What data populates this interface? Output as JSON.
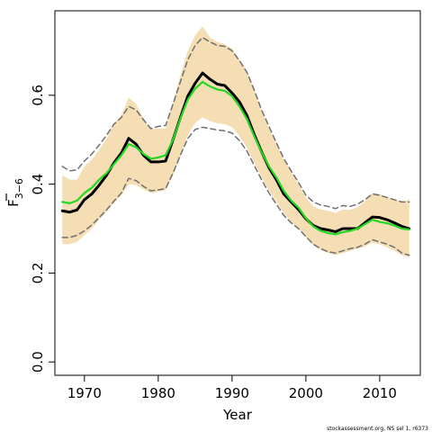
{
  "chart_data": {
    "type": "line",
    "xlabel": "Year",
    "ylabel": "F",
    "ylabel_subscript": "3−6",
    "xlim": [
      1966,
      2015.5
    ],
    "ylim": [
      -0.03,
      0.79
    ],
    "x_ticks": [
      1970,
      1980,
      1990,
      2000,
      2010
    ],
    "x_tick_labels": [
      "1970",
      "1980",
      "1990",
      "2000",
      "2010"
    ],
    "y_ticks": [
      0.0,
      0.2,
      0.4,
      0.6
    ],
    "y_tick_labels": [
      "0.0",
      "0.2",
      "0.4",
      "0.6"
    ],
    "grid": false,
    "legend": "none",
    "footer": "stockassessment.org, NS sel 1, r6373",
    "x": [
      1967,
      1968,
      1969,
      1970,
      1971,
      1972,
      1973,
      1974,
      1975,
      1976,
      1977,
      1978,
      1979,
      1980,
      1981,
      1982,
      1983,
      1984,
      1985,
      1986,
      1987,
      1988,
      1989,
      1990,
      1991,
      1992,
      1993,
      1994,
      1995,
      1996,
      1997,
      1998,
      1999,
      2000,
      2001,
      2002,
      2003,
      2004,
      2005,
      2006,
      2007,
      2008,
      2009,
      2010,
      2011,
      2012,
      2013,
      2014
    ],
    "series": [
      {
        "role": "point-estimate",
        "color": "#000000",
        "values": [
          0.34,
          0.337,
          0.342,
          0.365,
          0.378,
          0.398,
          0.42,
          0.448,
          0.47,
          0.503,
          0.49,
          0.465,
          0.45,
          0.45,
          0.452,
          0.5,
          0.55,
          0.598,
          0.627,
          0.65,
          0.636,
          0.625,
          0.622,
          0.605,
          0.585,
          0.555,
          0.512,
          0.473,
          0.437,
          0.41,
          0.378,
          0.36,
          0.343,
          0.322,
          0.307,
          0.3,
          0.297,
          0.293,
          0.3,
          0.3,
          0.3,
          0.313,
          0.326,
          0.325,
          0.32,
          0.313,
          0.305,
          0.3
        ]
      },
      {
        "role": "reference-estimate",
        "color": "#22d822",
        "values": [
          0.36,
          0.357,
          0.363,
          0.38,
          0.392,
          0.41,
          0.425,
          0.445,
          0.465,
          0.49,
          0.483,
          0.468,
          0.457,
          0.46,
          0.465,
          0.5,
          0.548,
          0.59,
          0.615,
          0.63,
          0.62,
          0.613,
          0.61,
          0.598,
          0.575,
          0.547,
          0.508,
          0.472,
          0.44,
          0.415,
          0.385,
          0.363,
          0.347,
          0.323,
          0.305,
          0.295,
          0.29,
          0.287,
          0.292,
          0.295,
          0.3,
          0.31,
          0.32,
          0.315,
          0.312,
          0.307,
          0.3,
          0.298
        ]
      },
      {
        "role": "ci-upper",
        "color": "#707070",
        "dashed": true,
        "values": [
          0.44,
          0.43,
          0.432,
          0.452,
          0.468,
          0.488,
          0.51,
          0.535,
          0.55,
          0.575,
          0.567,
          0.545,
          0.525,
          0.53,
          0.532,
          0.58,
          0.63,
          0.68,
          0.712,
          0.73,
          0.72,
          0.712,
          0.71,
          0.7,
          0.678,
          0.652,
          0.612,
          0.567,
          0.53,
          0.493,
          0.458,
          0.43,
          0.404,
          0.375,
          0.36,
          0.353,
          0.35,
          0.345,
          0.352,
          0.35,
          0.355,
          0.365,
          0.378,
          0.375,
          0.37,
          0.365,
          0.36,
          0.36
        ]
      },
      {
        "role": "ci-lower",
        "color": "#707070",
        "dashed": true,
        "values": [
          0.28,
          0.28,
          0.285,
          0.295,
          0.308,
          0.325,
          0.342,
          0.362,
          0.38,
          0.413,
          0.408,
          0.395,
          0.385,
          0.387,
          0.39,
          0.425,
          0.465,
          0.503,
          0.523,
          0.528,
          0.525,
          0.522,
          0.52,
          0.515,
          0.498,
          0.475,
          0.442,
          0.41,
          0.38,
          0.355,
          0.33,
          0.313,
          0.3,
          0.282,
          0.265,
          0.255,
          0.248,
          0.245,
          0.25,
          0.255,
          0.258,
          0.265,
          0.275,
          0.27,
          0.265,
          0.258,
          0.245,
          0.24
        ]
      },
      {
        "role": "band-upper",
        "color": "#f5deb3",
        "values": [
          0.42,
          0.41,
          0.41,
          0.44,
          0.455,
          0.477,
          0.503,
          0.535,
          0.555,
          0.595,
          0.58,
          0.548,
          0.525,
          0.525,
          0.525,
          0.585,
          0.645,
          0.7,
          0.735,
          0.755,
          0.73,
          0.72,
          0.715,
          0.705,
          0.68,
          0.655,
          0.612,
          0.565,
          0.525,
          0.49,
          0.455,
          0.428,
          0.4,
          0.37,
          0.35,
          0.343,
          0.34,
          0.335,
          0.343,
          0.342,
          0.348,
          0.362,
          0.38,
          0.378,
          0.37,
          0.365,
          0.36,
          0.365
        ]
      },
      {
        "role": "band-lower",
        "color": "#f5deb3",
        "values": [
          0.265,
          0.265,
          0.27,
          0.285,
          0.3,
          0.32,
          0.338,
          0.358,
          0.375,
          0.4,
          0.398,
          0.388,
          0.38,
          0.383,
          0.386,
          0.42,
          0.462,
          0.51,
          0.538,
          0.55,
          0.542,
          0.537,
          0.535,
          0.528,
          0.508,
          0.483,
          0.448,
          0.415,
          0.385,
          0.36,
          0.335,
          0.315,
          0.3,
          0.28,
          0.262,
          0.252,
          0.245,
          0.24,
          0.245,
          0.25,
          0.255,
          0.26,
          0.268,
          0.265,
          0.258,
          0.25,
          0.24,
          0.235
        ]
      }
    ]
  }
}
